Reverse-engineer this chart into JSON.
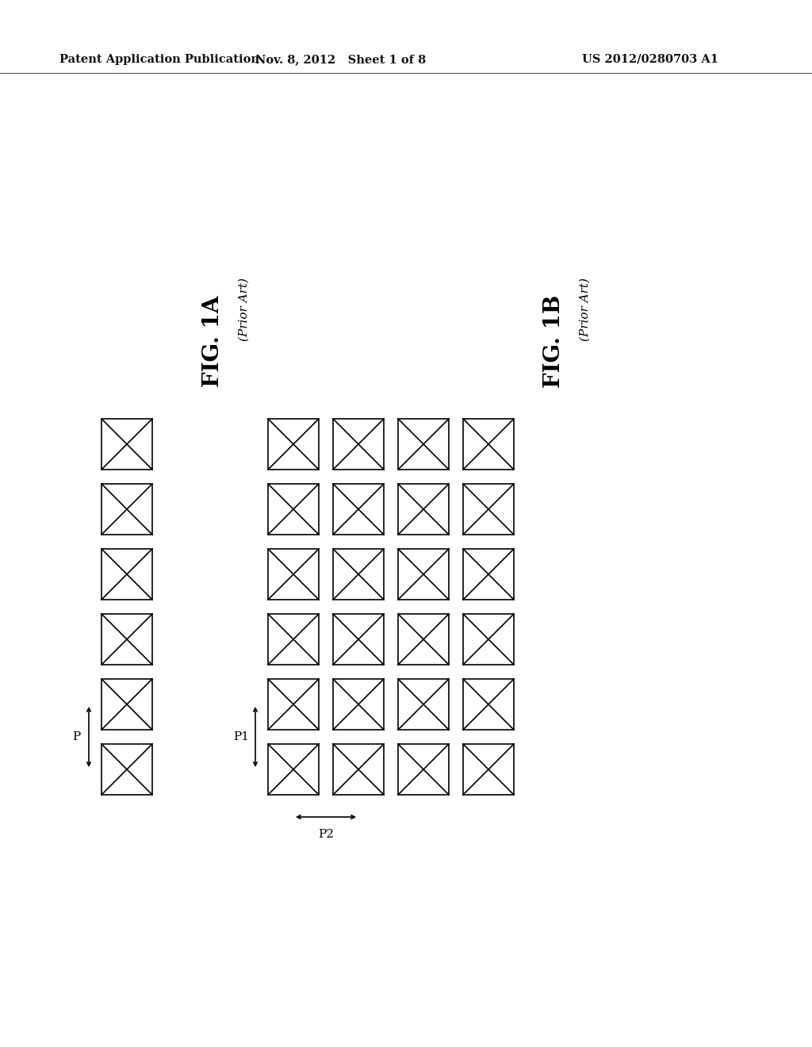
{
  "bg_color": "#ffffff",
  "header_text": "Patent Application Publication",
  "header_date": "Nov. 8, 2012   Sheet 1 of 8",
  "header_patent": "US 2012/0280703 A1",
  "fig1a_label": "FIG. 1A",
  "fig1b_label": "FIG. 1B",
  "prior_art": "(Prior Art)",
  "line_color": "#000000",
  "line_width": 1.2,
  "header_fontsize": 10.5,
  "label_fontsize": 20,
  "sublabel_fontsize": 11,
  "annotation_fontsize": 11,
  "fig_width": 10.24,
  "fig_height": 13.2,
  "dpi": 100
}
